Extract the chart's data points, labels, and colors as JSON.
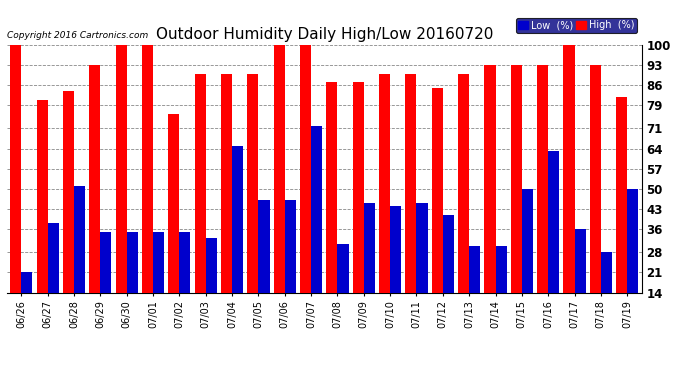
{
  "title": "Outdoor Humidity Daily High/Low 20160720",
  "copyright": "Copyright 2016 Cartronics.com",
  "categories": [
    "06/26",
    "06/27",
    "06/28",
    "06/29",
    "06/30",
    "07/01",
    "07/02",
    "07/03",
    "07/04",
    "07/05",
    "07/06",
    "07/07",
    "07/08",
    "07/09",
    "07/10",
    "07/11",
    "07/12",
    "07/13",
    "07/14",
    "07/15",
    "07/16",
    "07/17",
    "07/18",
    "07/19"
  ],
  "high": [
    100,
    81,
    84,
    93,
    100,
    100,
    76,
    90,
    90,
    90,
    100,
    100,
    87,
    87,
    90,
    90,
    85,
    90,
    93,
    93,
    93,
    100,
    93,
    82
  ],
  "low": [
    21,
    38,
    51,
    35,
    35,
    35,
    35,
    33,
    65,
    46,
    46,
    72,
    31,
    45,
    44,
    45,
    41,
    30,
    30,
    50,
    63,
    36,
    28,
    50
  ],
  "high_color": "#ff0000",
  "low_color": "#0000cc",
  "bg_color": "#ffffff",
  "grid_color": "#888888",
  "ylim_min": 14,
  "ylim_max": 100,
  "yticks": [
    14,
    21,
    28,
    36,
    43,
    50,
    57,
    64,
    71,
    79,
    86,
    93,
    100
  ],
  "bar_width": 0.42,
  "legend_low_label": "Low  (%)",
  "legend_high_label": "High  (%)",
  "legend_bg": "#000080",
  "title_fontsize": 11,
  "tick_fontsize": 8.5,
  "xlabel_fontsize": 7,
  "copyright_fontsize": 6.5
}
